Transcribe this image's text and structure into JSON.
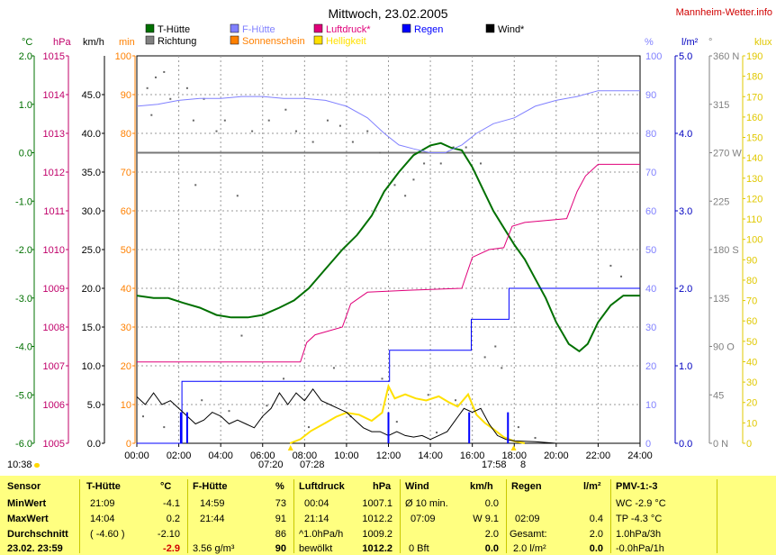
{
  "header": {
    "title": "Mittwoch, 23.02.2005",
    "site": "Mannheim-Wetter.info"
  },
  "axis_units": {
    "celsius": "°C",
    "hpa": "hPa",
    "kmh": "km/h",
    "min": "min",
    "percent": "%",
    "lm2": "l/m²",
    "deg": "°",
    "klux": "klux"
  },
  "legend": [
    {
      "label": "T-Hütte",
      "color": "#007000",
      "text_color": "#000000"
    },
    {
      "label": "Richtung",
      "color": "#808080",
      "text_color": "#000000"
    },
    {
      "label": "F-Hütte",
      "color": "#8080ff",
      "text_color": "#8080ff"
    },
    {
      "label": "Sonnenschein",
      "color": "#ff8000",
      "text_color": "#ff8000"
    },
    {
      "label": "Luftdruck*",
      "color": "#e0007a",
      "text_color": "#e0007a"
    },
    {
      "label": "Helligkeit",
      "color": "#ffe000",
      "text_color": "#ffe000"
    },
    {
      "label": "Regen",
      "color": "#0000ff",
      "text_color": "#0000ff"
    },
    {
      "label": "Wind*",
      "color": "#000000",
      "text_color": "#000000"
    }
  ],
  "notes": {
    "sunrise_left": "10:38",
    "sunrise_time": "07:20",
    "sunrise_mid": "07:28",
    "sunset_time": "17:58",
    "sunset_suffix": "8"
  },
  "chart_data": {
    "type": "line",
    "title": "Mittwoch, 23.02.2005",
    "x": {
      "min": 0,
      "max": 24,
      "ticks": [
        "00:00",
        "02:00",
        "04:00",
        "06:00",
        "08:00",
        "10:00",
        "12:00",
        "14:00",
        "16:00",
        "18:00",
        "20:00",
        "22:00",
        "24:00"
      ]
    },
    "grid": true,
    "axes": {
      "temperature_c": {
        "range": [
          -6.0,
          2.0
        ],
        "ticks": [
          "2.0",
          "1.0",
          "0.0",
          "-1.0",
          "-2.0",
          "-3.0",
          "-4.0",
          "-5.0",
          "-6.0"
        ],
        "color": "#007000"
      },
      "pressure_hpa": {
        "range": [
          1005,
          1015
        ],
        "ticks": [
          "1015",
          "1014",
          "1013",
          "1012",
          "1011",
          "1010",
          "1009",
          "1008",
          "1007",
          "1006",
          "1005"
        ],
        "color": "#c0006a"
      },
      "wind_kmh": {
        "range": [
          0,
          50
        ],
        "ticks": [
          "45.0",
          "40.0",
          "35.0",
          "30.0",
          "25.0",
          "20.0",
          "15.0",
          "10.0",
          "5.0",
          "0.0"
        ],
        "color": "#000000"
      },
      "sunshine_min": {
        "range": [
          0,
          100
        ],
        "ticks": [
          "100",
          "90",
          "80",
          "70",
          "60",
          "50",
          "40",
          "30",
          "20",
          "10",
          "0"
        ],
        "color": "#ff8000"
      },
      "humidity_pct": {
        "range": [
          0,
          100
        ],
        "ticks": [
          "100",
          "90",
          "80",
          "70",
          "60",
          "50",
          "40",
          "30",
          "20",
          "10",
          "0"
        ],
        "color": "#8080ff"
      },
      "rain_lm2": {
        "range": [
          0,
          5
        ],
        "ticks": [
          "5.0",
          "4.0",
          "3.0",
          "2.0",
          "1.0",
          "0.0"
        ],
        "color": "#0000c0"
      },
      "direction_deg": {
        "range": [
          0,
          360
        ],
        "ticks": [
          "360 N",
          "315",
          "270 W",
          "225",
          "180 S",
          "135",
          "90 O",
          "45",
          "0 N"
        ],
        "color": "#808080"
      },
      "brightness_klux": {
        "range": [
          0,
          190
        ],
        "ticks": [
          "190",
          "180",
          "170",
          "160",
          "150",
          "140",
          "130",
          "120",
          "110",
          "100",
          "90",
          "80",
          "70",
          "60",
          "50",
          "40",
          "30",
          "20",
          "10",
          "0"
        ],
        "color": "#e0c800"
      }
    },
    "series": [
      {
        "name": "T-Hütte",
        "axis": "temperature_c",
        "color": "#007000",
        "points": [
          [
            0,
            -2.95
          ],
          [
            0.8,
            -3.0
          ],
          [
            1.5,
            -3.0
          ],
          [
            2.2,
            -3.1
          ],
          [
            3.0,
            -3.2
          ],
          [
            3.8,
            -3.35
          ],
          [
            4.5,
            -3.4
          ],
          [
            5.3,
            -3.4
          ],
          [
            6.0,
            -3.35
          ],
          [
            6.8,
            -3.2
          ],
          [
            7.5,
            -3.05
          ],
          [
            8.2,
            -2.8
          ],
          [
            9.0,
            -2.4
          ],
          [
            9.8,
            -2.0
          ],
          [
            10.5,
            -1.7
          ],
          [
            11.2,
            -1.3
          ],
          [
            11.8,
            -0.8
          ],
          [
            12.5,
            -0.4
          ],
          [
            13.2,
            -0.05
          ],
          [
            14.0,
            0.15
          ],
          [
            14.5,
            0.2
          ],
          [
            15.0,
            0.1
          ],
          [
            15.5,
            0.05
          ],
          [
            16.0,
            -0.3
          ],
          [
            16.5,
            -0.75
          ],
          [
            17.0,
            -1.2
          ],
          [
            17.5,
            -1.55
          ],
          [
            18.0,
            -1.9
          ],
          [
            18.5,
            -2.2
          ],
          [
            19.0,
            -2.6
          ],
          [
            19.5,
            -3.0
          ],
          [
            20.0,
            -3.5
          ],
          [
            20.6,
            -3.95
          ],
          [
            21.1,
            -4.1
          ],
          [
            21.5,
            -3.95
          ],
          [
            22.0,
            -3.5
          ],
          [
            22.6,
            -3.15
          ],
          [
            23.2,
            -2.95
          ],
          [
            24.0,
            -2.95
          ]
        ]
      },
      {
        "name": "F-Hütte",
        "axis": "humidity_pct",
        "color": "#8080ff",
        "points": [
          [
            0,
            87
          ],
          [
            1.0,
            87.5
          ],
          [
            2.0,
            88.5
          ],
          [
            3.0,
            89
          ],
          [
            4.0,
            89
          ],
          [
            5.0,
            89.5
          ],
          [
            6.0,
            89.5
          ],
          [
            7.0,
            89
          ],
          [
            8.0,
            89
          ],
          [
            9.0,
            88.5
          ],
          [
            10.0,
            87
          ],
          [
            11.0,
            84
          ],
          [
            11.8,
            80
          ],
          [
            12.5,
            77
          ],
          [
            13.2,
            76
          ],
          [
            14.0,
            75
          ],
          [
            14.7,
            75
          ],
          [
            15.5,
            77
          ],
          [
            16.2,
            80
          ],
          [
            17.0,
            82.5
          ],
          [
            18.0,
            84
          ],
          [
            19.0,
            87
          ],
          [
            20.0,
            88.5
          ],
          [
            21.0,
            89.5
          ],
          [
            22.0,
            91
          ],
          [
            24.0,
            91
          ]
        ]
      },
      {
        "name": "Luftdruck*",
        "axis": "pressure_hpa",
        "color": "#e0007a",
        "points": [
          [
            0,
            1007.1
          ],
          [
            7.8,
            1007.1
          ],
          [
            8.1,
            1007.6
          ],
          [
            8.5,
            1007.8
          ],
          [
            9.8,
            1008.0
          ],
          [
            10.2,
            1008.6
          ],
          [
            11.0,
            1008.9
          ],
          [
            13.0,
            1008.95
          ],
          [
            15.5,
            1009.0
          ],
          [
            16.0,
            1009.8
          ],
          [
            16.8,
            1010.0
          ],
          [
            17.5,
            1010.05
          ],
          [
            17.9,
            1010.6
          ],
          [
            18.5,
            1010.7
          ],
          [
            20.5,
            1010.8
          ],
          [
            21.0,
            1011.5
          ],
          [
            21.4,
            1011.9
          ],
          [
            22.0,
            1012.2
          ],
          [
            24.0,
            1012.2
          ]
        ]
      },
      {
        "name": "Regen",
        "axis": "rain_lm2",
        "color": "#0000ff",
        "points": [
          [
            0,
            0
          ],
          [
            2.15,
            0
          ],
          [
            2.15,
            0.8
          ],
          [
            12.05,
            0.8
          ],
          [
            12.05,
            1.2
          ],
          [
            15.95,
            1.2
          ],
          [
            15.95,
            1.6
          ],
          [
            17.75,
            1.6
          ],
          [
            17.75,
            2.0
          ],
          [
            24.0,
            2.0
          ]
        ]
      },
      {
        "name": "Helligkeit",
        "axis": "brightness_klux",
        "color": "#ffe000",
        "points": [
          [
            7.3,
            0
          ],
          [
            7.8,
            2
          ],
          [
            8.3,
            6
          ],
          [
            9.0,
            10
          ],
          [
            9.5,
            13
          ],
          [
            10.0,
            15
          ],
          [
            10.6,
            14
          ],
          [
            11.2,
            11
          ],
          [
            11.7,
            15
          ],
          [
            12.0,
            28
          ],
          [
            12.3,
            22
          ],
          [
            12.8,
            24
          ],
          [
            13.3,
            22
          ],
          [
            13.8,
            21
          ],
          [
            14.4,
            23
          ],
          [
            14.9,
            20
          ],
          [
            15.3,
            18
          ],
          [
            15.8,
            24
          ],
          [
            16.2,
            14
          ],
          [
            16.6,
            10
          ],
          [
            17.0,
            7
          ],
          [
            17.5,
            3
          ],
          [
            18.0,
            1
          ],
          [
            18.5,
            0
          ]
        ]
      },
      {
        "name": "Wind*",
        "axis": "wind_kmh",
        "color": "#000000",
        "points": [
          [
            0,
            6
          ],
          [
            0.4,
            5
          ],
          [
            0.8,
            6.5
          ],
          [
            1.2,
            5
          ],
          [
            1.6,
            5.5
          ],
          [
            2.0,
            4.5
          ],
          [
            2.4,
            3.5
          ],
          [
            2.8,
            2.5
          ],
          [
            3.2,
            3
          ],
          [
            3.6,
            4
          ],
          [
            4.0,
            3.5
          ],
          [
            4.4,
            2.5
          ],
          [
            4.8,
            3
          ],
          [
            5.2,
            2.5
          ],
          [
            5.6,
            2
          ],
          [
            6.0,
            3.5
          ],
          [
            6.4,
            4.5
          ],
          [
            6.8,
            6.5
          ],
          [
            7.2,
            5
          ],
          [
            7.6,
            6.5
          ],
          [
            8.0,
            5.5
          ],
          [
            8.4,
            7
          ],
          [
            8.8,
            5.5
          ],
          [
            9.2,
            5
          ],
          [
            9.6,
            4.5
          ],
          [
            10.0,
            4
          ],
          [
            10.4,
            3
          ],
          [
            10.8,
            2
          ],
          [
            11.2,
            1.5
          ],
          [
            11.6,
            1.5
          ],
          [
            12.0,
            1
          ],
          [
            12.4,
            1.5
          ],
          [
            12.8,
            1
          ],
          [
            13.2,
            0.8
          ],
          [
            13.6,
            1
          ],
          [
            14.0,
            0.5
          ],
          [
            14.4,
            1
          ],
          [
            14.8,
            1.5
          ],
          [
            15.2,
            3
          ],
          [
            15.6,
            4.5
          ],
          [
            16.0,
            4
          ],
          [
            16.4,
            4.5
          ],
          [
            16.8,
            2.5
          ],
          [
            17.2,
            1
          ],
          [
            17.6,
            0.5
          ],
          [
            18.0,
            0.3
          ],
          [
            19.0,
            0.2
          ],
          [
            20.0,
            0
          ],
          [
            24.0,
            0
          ]
        ]
      }
    ],
    "rain_bars": [
      [
        2.1,
        0.4
      ],
      [
        2.4,
        0.4
      ],
      [
        12.0,
        0.4
      ],
      [
        15.85,
        0.4
      ],
      [
        17.7,
        0.4
      ]
    ],
    "frost_line_c": 0.0,
    "direction_scatter": [
      [
        0.5,
        330
      ],
      [
        0.9,
        340
      ],
      [
        1.3,
        345
      ],
      [
        1.6,
        320
      ],
      [
        0.7,
        305
      ],
      [
        2.4,
        330
      ],
      [
        2.7,
        300
      ],
      [
        3.2,
        320
      ],
      [
        3.8,
        290
      ],
      [
        4.2,
        300
      ],
      [
        5.5,
        290
      ],
      [
        6.3,
        300
      ],
      [
        7.1,
        310
      ],
      [
        7.6,
        290
      ],
      [
        8.4,
        280
      ],
      [
        9.1,
        300
      ],
      [
        9.7,
        295
      ],
      [
        10.3,
        280
      ],
      [
        11.0,
        290
      ],
      [
        11.6,
        270
      ],
      [
        12.3,
        240
      ],
      [
        12.8,
        230
      ],
      [
        13.2,
        245
      ],
      [
        13.7,
        260
      ],
      [
        14.5,
        260
      ],
      [
        15.1,
        275
      ],
      [
        15.7,
        275
      ],
      [
        16.4,
        260
      ],
      [
        5.0,
        100
      ],
      [
        7.0,
        60
      ],
      [
        9.4,
        70
      ],
      [
        11.7,
        60
      ],
      [
        13.9,
        45
      ],
      [
        15.2,
        40
      ],
      [
        16.6,
        80
      ],
      [
        17.4,
        70
      ],
      [
        18.2,
        15
      ],
      [
        19.0,
        5
      ],
      [
        22.6,
        165
      ],
      [
        23.1,
        155
      ],
      [
        0.3,
        25
      ],
      [
        1.3,
        15
      ],
      [
        3.1,
        40
      ],
      [
        4.4,
        30
      ],
      [
        6.2,
        35
      ],
      [
        8.2,
        15
      ],
      [
        10.2,
        25
      ],
      [
        12.4,
        20
      ],
      [
        14.3,
        10
      ],
      [
        17.1,
        90
      ],
      [
        2.8,
        240
      ],
      [
        4.8,
        230
      ]
    ]
  },
  "stats": {
    "rows_label": [
      "Sensor",
      "MinWert",
      "MaxWert",
      "Durchschnitt",
      "23.02. 23:59"
    ],
    "thuette": {
      "header": "T-Hütte",
      "unit": "°C",
      "rows": [
        [
          "21:09",
          "-4.1"
        ],
        [
          "14:04",
          "0.2"
        ],
        [
          "( -4.60 )",
          "-2.10"
        ],
        [
          "",
          "-2.9"
        ]
      ]
    },
    "fhuette": {
      "header": "F-Hütte",
      "unit": "%",
      "rows": [
        [
          "14:59",
          "73"
        ],
        [
          "21:44",
          "91"
        ],
        [
          "",
          "86"
        ],
        [
          "3.56 g/m³",
          "90"
        ]
      ]
    },
    "luftdruck": {
      "header": "Luftdruck",
      "unit": "hPa",
      "rows": [
        [
          "00:04",
          "1007.1"
        ],
        [
          "21:14",
          "1012.2"
        ],
        [
          "^1.0hPa/h",
          "1009.2"
        ],
        [
          "bewölkt",
          "1012.2"
        ]
      ]
    },
    "wind": {
      "header": "Wind",
      "unit": "km/h",
      "rows": [
        [
          "Ø 10 min.",
          "0.0"
        ],
        [
          "07:09",
          "W 9.1"
        ],
        [
          "",
          "2.0"
        ],
        [
          "0 Bft",
          "0.0"
        ]
      ]
    },
    "regen": {
      "header": "Regen",
      "unit": "l/m²",
      "rows": [
        [
          "",
          ""
        ],
        [
          "02:09",
          "0.4"
        ],
        [
          "Gesamt:",
          "2.0"
        ],
        [
          "2.0 l/m²",
          "0.0"
        ]
      ]
    },
    "pmv": {
      "header": "PMV-1:-3",
      "rows": [
        "WC -2.9 °C",
        "TP -4.3 °C",
        "1.0hPa/3h",
        "-0.0hPa/1h"
      ]
    }
  }
}
